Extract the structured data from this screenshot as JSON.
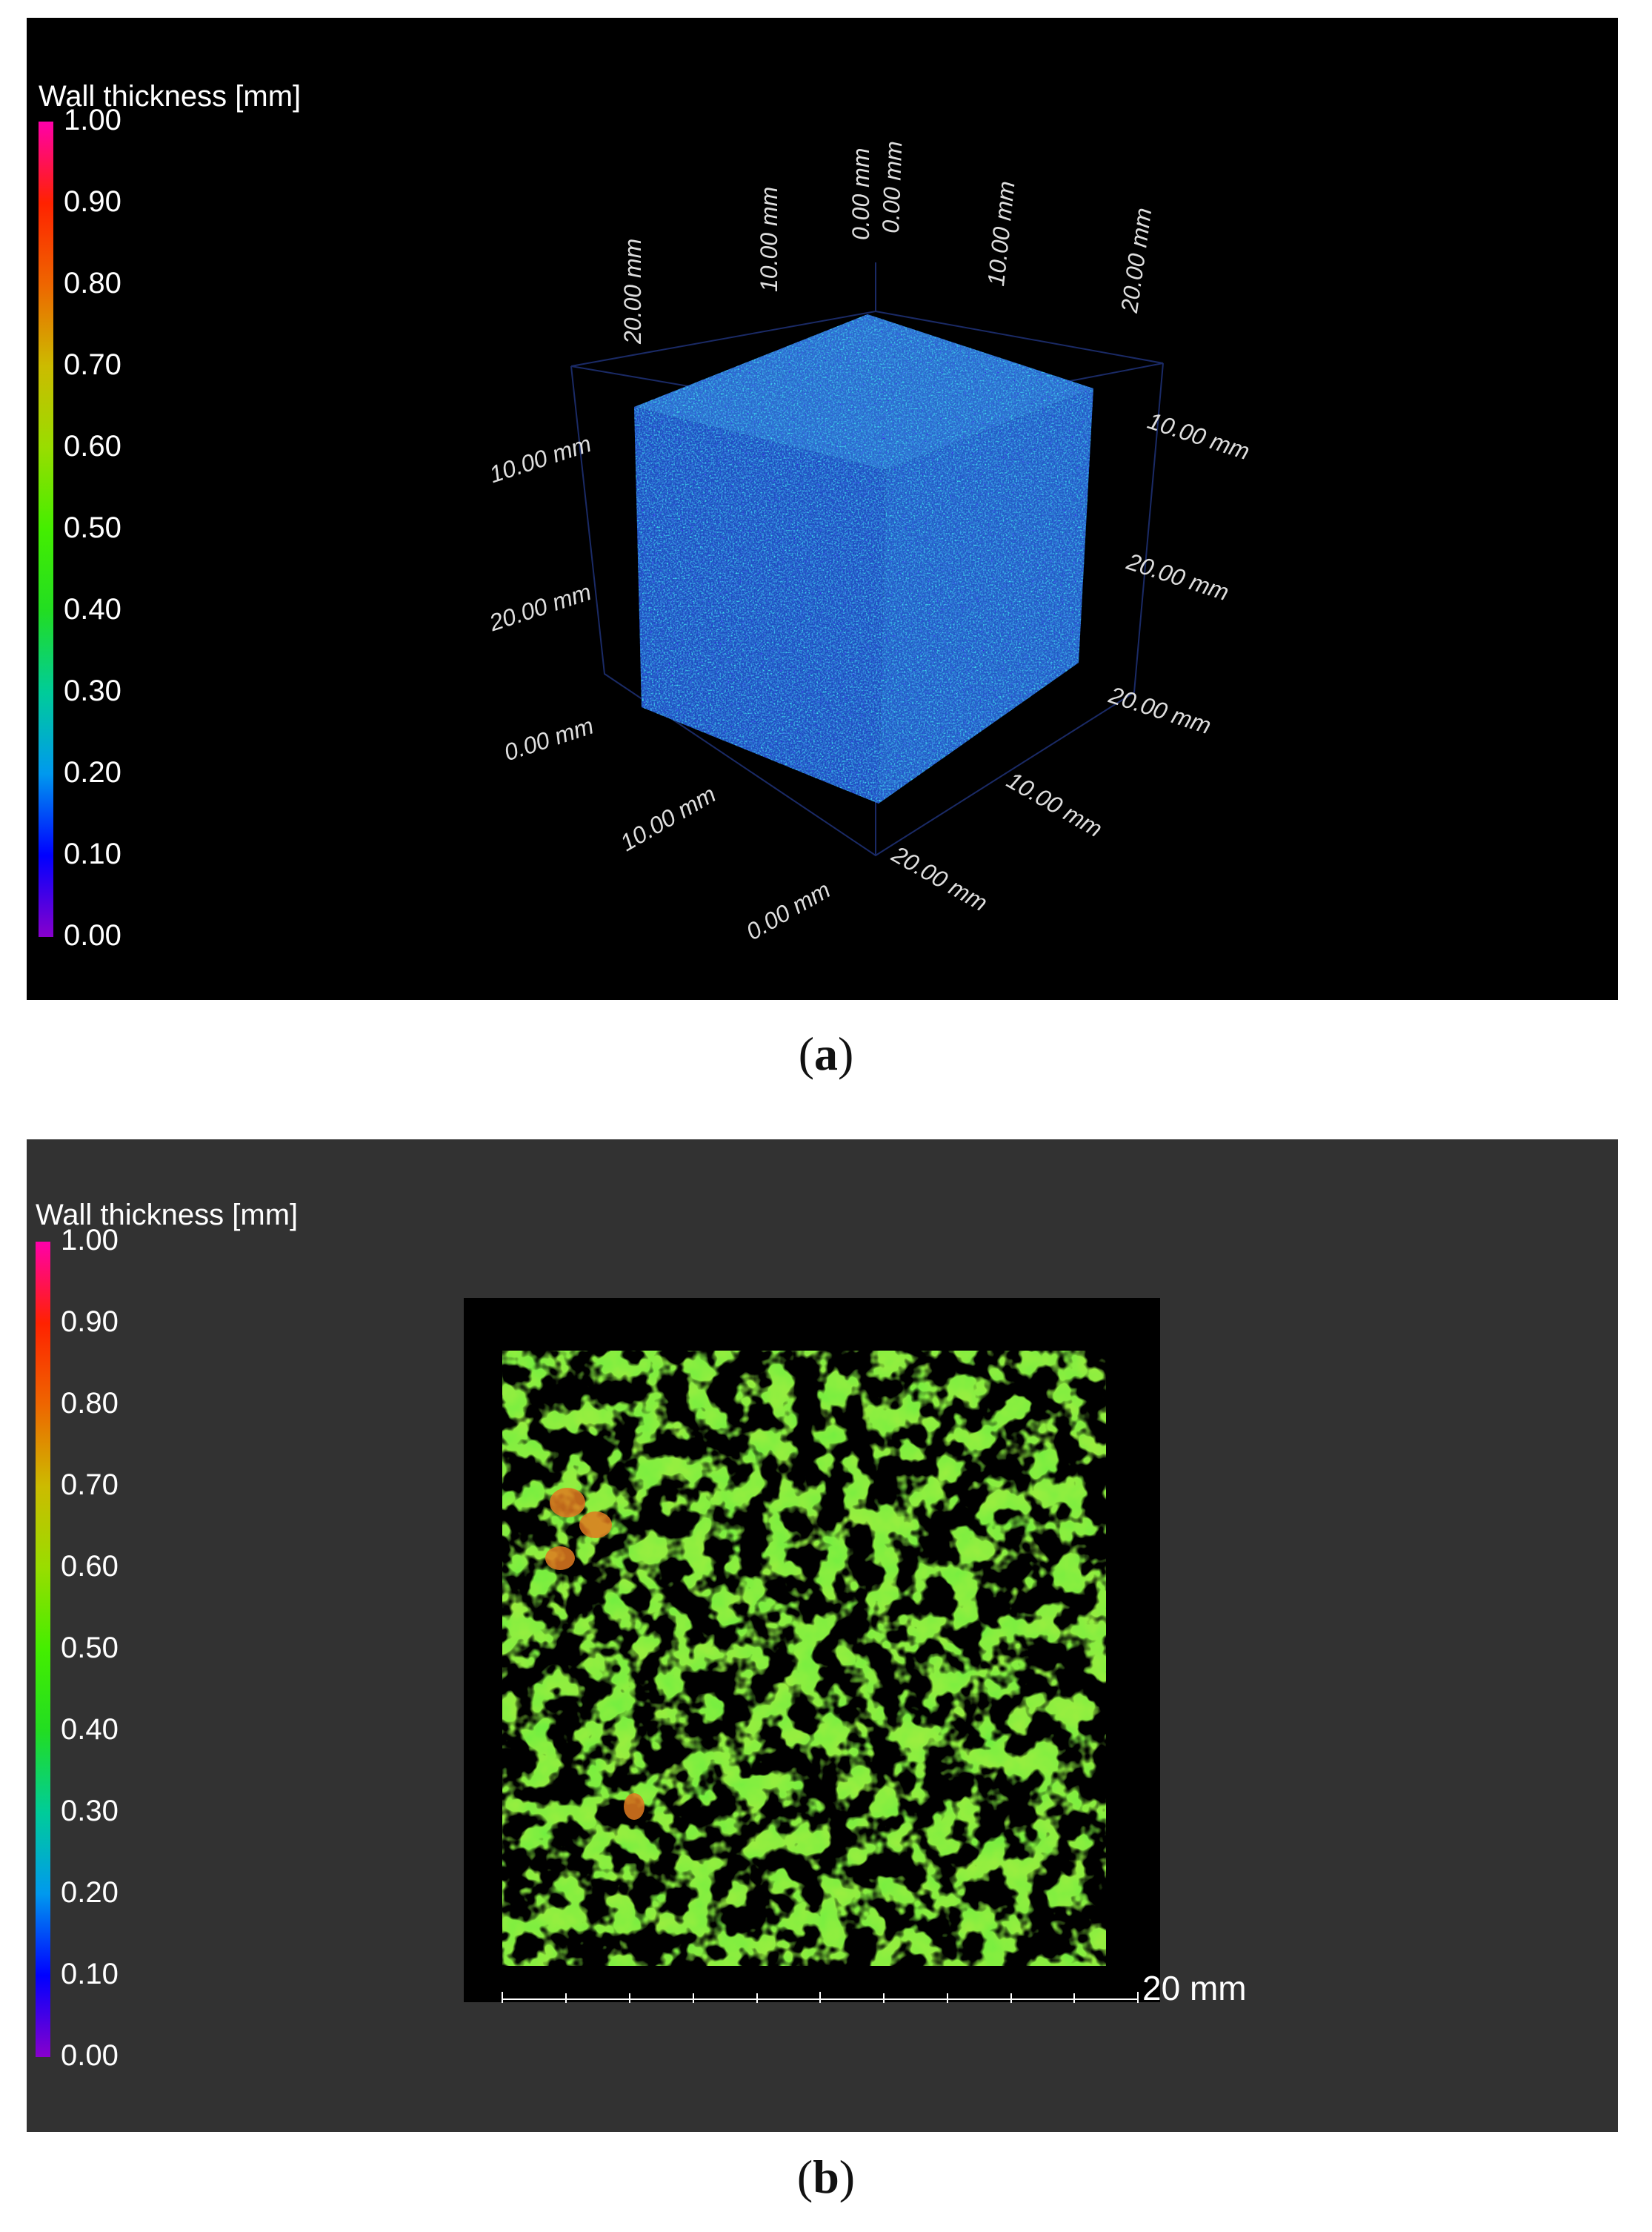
{
  "panels": [
    {
      "id": "a",
      "caption": "a",
      "legend_title": "Wall thickness [mm]",
      "legend_ticks": [
        "1.00",
        "0.90",
        "0.80",
        "0.70",
        "0.60",
        "0.50",
        "0.40",
        "0.30",
        "0.20",
        "0.10",
        "0.00"
      ],
      "axis_labels": [
        "0.00 mm",
        "10.00 mm",
        "20.00 mm",
        "20.00 mm",
        "10.00 mm",
        "0.00 mm",
        "10.00 mm",
        "20.00 mm",
        "0.00 mm",
        "10.00 mm",
        "20.00 mm",
        "20.00 mm",
        "10.00 mm",
        "0.00 mm",
        "10.00 mm",
        "20.00 mm"
      ]
    },
    {
      "id": "b",
      "caption": "b",
      "legend_title": "Wall thickness [mm]",
      "legend_ticks": [
        "1.00",
        "0.90",
        "0.80",
        "0.70",
        "0.60",
        "0.50",
        "0.40",
        "0.30",
        "0.20",
        "0.10",
        "0.00"
      ],
      "scale_bar_label": "20 mm"
    }
  ],
  "colors": {
    "panel_a_background": "#000000",
    "panel_b_background": "#323232",
    "colormap": [
      "#8800cc",
      "#0000ff",
      "#0099ee",
      "#00cc99",
      "#22dd22",
      "#44ee00",
      "#99dd00",
      "#ccbb00",
      "#ee6600",
      "#ff2200",
      "#ff00aa"
    ]
  }
}
